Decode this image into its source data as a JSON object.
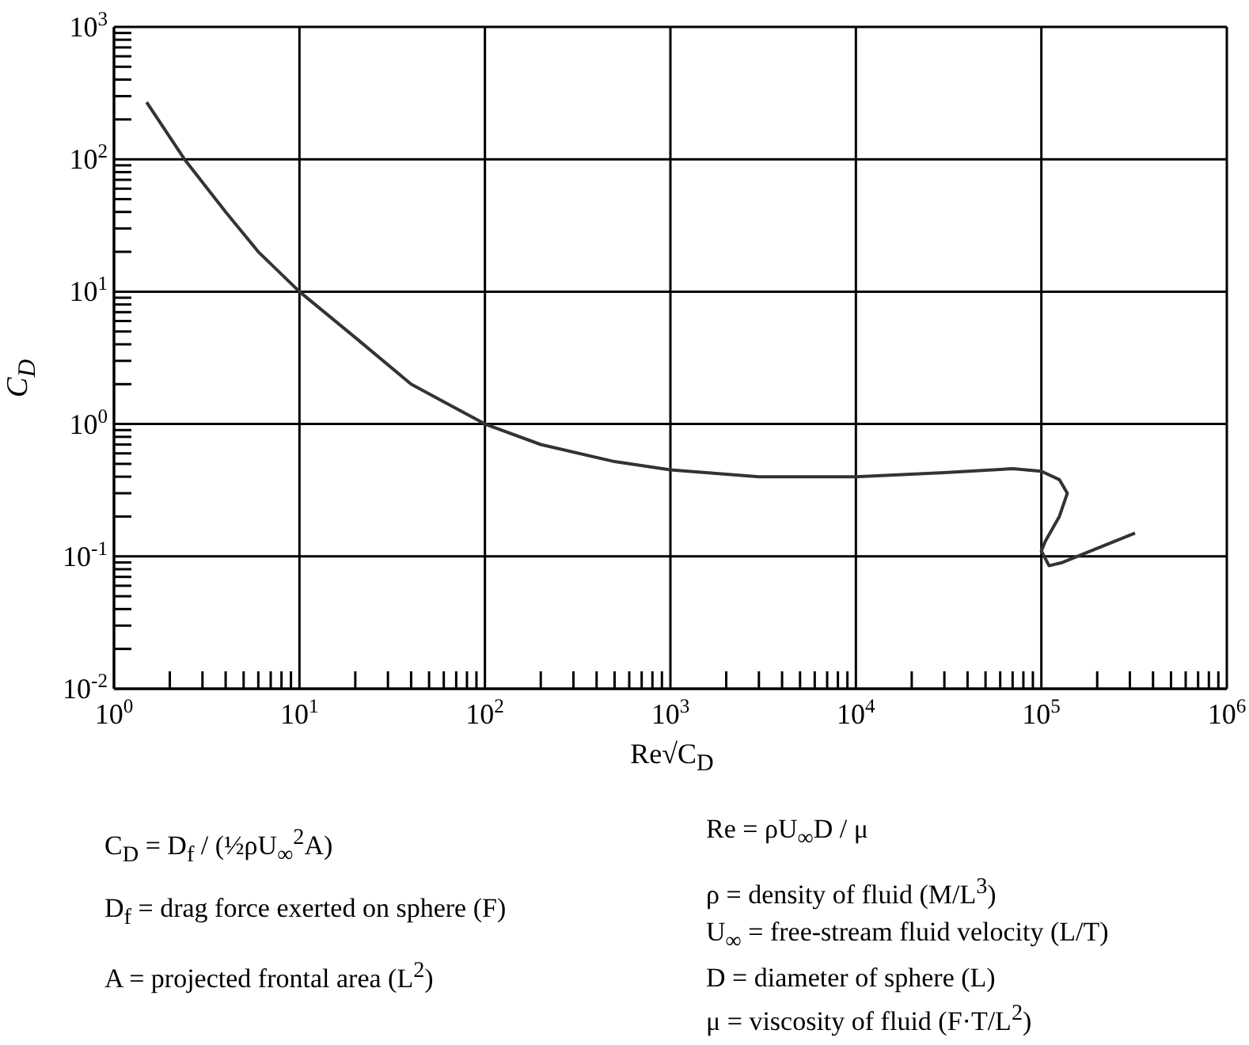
{
  "chart_data": {
    "type": "line",
    "xlabel": "Re√C$_{D}$",
    "ylabel": "C$_{D}$",
    "log": "xy",
    "grid": true,
    "xlim": [
      1,
      1000000
    ],
    "ylim": [
      0.01,
      1000
    ],
    "xticks": [
      {
        "value": 1,
        "label": "10$^{0}$"
      },
      {
        "value": 2,
        "label": null
      },
      {
        "value": 3,
        "label": null
      },
      {
        "value": 4,
        "label": null
      },
      {
        "value": 5,
        "label": null
      },
      {
        "value": 6,
        "label": null
      },
      {
        "value": 7,
        "label": null
      },
      {
        "value": 8,
        "label": null
      },
      {
        "value": 9,
        "label": null
      },
      {
        "value": 10,
        "label": "10$^{1}$"
      },
      {
        "value": 20,
        "label": null
      },
      {
        "value": 30,
        "label": null
      },
      {
        "value": 40,
        "label": null
      },
      {
        "value": 50,
        "label": null
      },
      {
        "value": 60,
        "label": null
      },
      {
        "value": 70,
        "label": null
      },
      {
        "value": 80,
        "label": null
      },
      {
        "value": 90,
        "label": null
      },
      {
        "value": 100,
        "label": "10$^{2}$"
      },
      {
        "value": 200,
        "label": null
      },
      {
        "value": 300,
        "label": null
      },
      {
        "value": 400,
        "label": null
      },
      {
        "value": 500,
        "label": null
      },
      {
        "value": 600,
        "label": null
      },
      {
        "value": 700,
        "label": null
      },
      {
        "value": 800,
        "label": null
      },
      {
        "value": 900,
        "label": null
      },
      {
        "value": 1000,
        "label": "10$^{3}$"
      },
      {
        "value": 2000,
        "label": null
      },
      {
        "value": 3000,
        "label": null
      },
      {
        "value": 4000,
        "label": null
      },
      {
        "value": 5000,
        "label": null
      },
      {
        "value": 6000,
        "label": null
      },
      {
        "value": 7000,
        "label": null
      },
      {
        "value": 8000,
        "label": null
      },
      {
        "value": 9000,
        "label": null
      },
      {
        "value": 10000,
        "label": "10$^{4}$"
      },
      {
        "value": 20000,
        "label": null
      },
      {
        "value": 30000,
        "label": null
      },
      {
        "value": 40000,
        "label": null
      },
      {
        "value": 50000,
        "label": null
      },
      {
        "value": 60000,
        "label": null
      },
      {
        "value": 70000,
        "label": null
      },
      {
        "value": 80000,
        "label": null
      },
      {
        "value": 90000,
        "label": null
      },
      {
        "value": 100000,
        "label": "10$^{5}$"
      },
      {
        "value": 200000,
        "label": null
      },
      {
        "value": 300000,
        "label": null
      },
      {
        "value": 400000,
        "label": null
      },
      {
        "value": 500000,
        "label": null
      },
      {
        "value": 600000,
        "label": null
      },
      {
        "value": 700000,
        "label": null
      },
      {
        "value": 800000,
        "label": null
      },
      {
        "value": 900000,
        "label": null
      },
      {
        "value": 1000000,
        "label": "10$^{6}$"
      }
    ],
    "yticks": [
      {
        "value": 0.01,
        "label": "10$^{-2}$"
      },
      {
        "value": 0.02,
        "label": null
      },
      {
        "value": 0.03,
        "label": null
      },
      {
        "value": 0.04,
        "label": null
      },
      {
        "value": 0.05,
        "label": null
      },
      {
        "value": 0.06,
        "label": null
      },
      {
        "value": 0.07,
        "label": null
      },
      {
        "value": 0.08,
        "label": null
      },
      {
        "value": 0.09,
        "label": null
      },
      {
        "value": 0.1,
        "label": "10$^{-1}$"
      },
      {
        "value": 0.2,
        "label": null
      },
      {
        "value": 0.3,
        "label": null
      },
      {
        "value": 0.4,
        "label": null
      },
      {
        "value": 0.5,
        "label": null
      },
      {
        "value": 0.6,
        "label": null
      },
      {
        "value": 0.7,
        "label": null
      },
      {
        "value": 0.8,
        "label": null
      },
      {
        "value": 0.9,
        "label": null
      },
      {
        "value": 1,
        "label": "10$^{0}$"
      },
      {
        "value": 2,
        "label": null
      },
      {
        "value": 3,
        "label": null
      },
      {
        "value": 4,
        "label": null
      },
      {
        "value": 5,
        "label": null
      },
      {
        "value": 6,
        "label": null
      },
      {
        "value": 7,
        "label": null
      },
      {
        "value": 8,
        "label": null
      },
      {
        "value": 9,
        "label": null
      },
      {
        "value": 10,
        "label": "10$^{1}$"
      },
      {
        "value": 20,
        "label": null
      },
      {
        "value": 30,
        "label": null
      },
      {
        "value": 40,
        "label": null
      },
      {
        "value": 50,
        "label": null
      },
      {
        "value": 60,
        "label": null
      },
      {
        "value": 70,
        "label": null
      },
      {
        "value": 80,
        "label": null
      },
      {
        "value": 90,
        "label": null
      },
      {
        "value": 100,
        "label": "10$^{2}$"
      },
      {
        "value": 200,
        "label": null
      },
      {
        "value": 300,
        "label": null
      },
      {
        "value": 400,
        "label": null
      },
      {
        "value": 500,
        "label": null
      },
      {
        "value": 600,
        "label": null
      },
      {
        "value": 700,
        "label": null
      },
      {
        "value": 800,
        "label": null
      },
      {
        "value": 900,
        "label": null
      },
      {
        "value": 1000,
        "label": "10$^{3}$"
      }
    ],
    "series": [
      {
        "color": "#333333",
        "x": [
          1.5,
          2.4,
          4,
          6,
          10,
          20,
          40,
          100,
          200,
          500,
          1000,
          3000,
          10000,
          30000,
          70000,
          100000,
          125000,
          138000,
          125000,
          105000,
          100000,
          110000,
          130000,
          200000,
          320000
        ],
        "values": [
          270,
          100,
          40,
          20,
          10,
          4.5,
          2,
          1,
          0.7,
          0.52,
          0.45,
          0.4,
          0.4,
          0.43,
          0.46,
          0.44,
          0.38,
          0.3,
          0.2,
          0.13,
          0.11,
          0.085,
          0.09,
          0.115,
          0.15
        ]
      }
    ],
    "annotations": [
      "C$_{D}$ = D$_{f}$ / (½ρU$_{∞}$$^{2}$A)",
      "D$_{f}$ = drag force exerted on sphere (F)",
      "A = projected frontal area (L$^{2}$)",
      "Re = ρU$_{∞}$D / μ",
      "ρ = density of fluid (M/L$^{3}$)",
      "U$_{∞}$ = free-stream fluid velocity (L/T)",
      "D = diameter of sphere (L)",
      "μ = viscosity of fluid (F·T/L$^{2}$)"
    ]
  }
}
